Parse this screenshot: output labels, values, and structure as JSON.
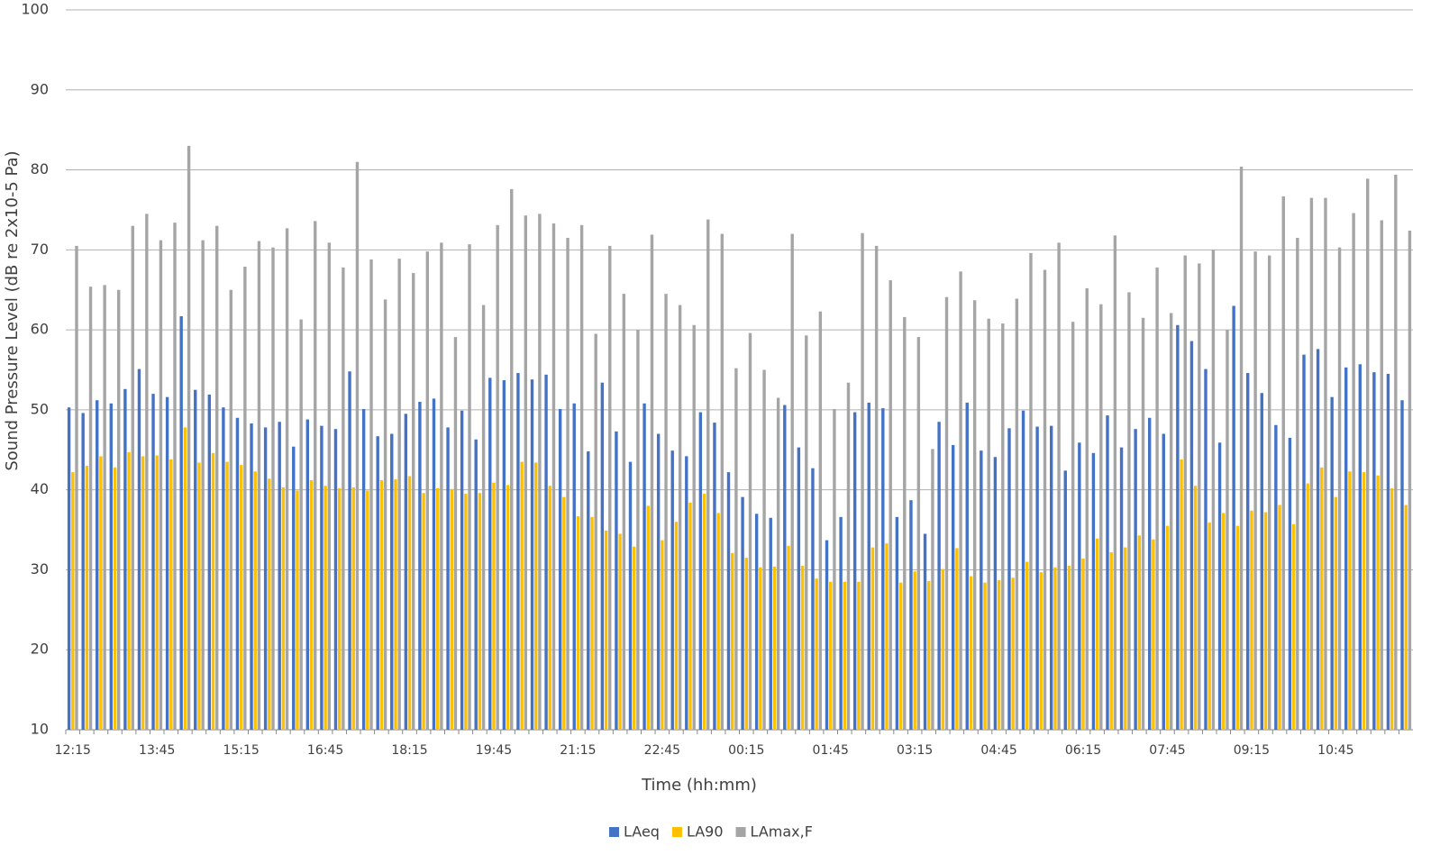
{
  "chart_data": {
    "type": "bar",
    "y_label": "Sound Pressure Level (dB re 2x10-5 Pa)",
    "x_label": "Time (hh:mm)",
    "categories": [
      "12:15",
      null,
      null,
      null,
      null,
      null,
      "13:45",
      null,
      null,
      null,
      null,
      null,
      "15:15",
      null,
      null,
      null,
      null,
      null,
      "16:45",
      null,
      null,
      null,
      null,
      null,
      "18:15",
      null,
      null,
      null,
      null,
      null,
      "19:45",
      null,
      null,
      null,
      null,
      null,
      "21:15",
      null,
      null,
      null,
      null,
      null,
      "22:45",
      null,
      null,
      null,
      null,
      null,
      "00:15",
      null,
      null,
      null,
      null,
      null,
      "01:45",
      null,
      null,
      null,
      null,
      null,
      "03:15",
      null,
      null,
      null,
      null,
      null,
      "04:45",
      null,
      null,
      null,
      null,
      null,
      "06:15",
      null,
      null,
      null,
      null,
      null,
      "07:45",
      null,
      null,
      null,
      null,
      null,
      "09:15",
      null,
      null,
      null,
      null,
      null,
      "10:45",
      null,
      null,
      null,
      null,
      null
    ],
    "series": [
      {
        "name": "LAeq",
        "color": "#4472c4",
        "values": [
          50.3,
          49.6,
          51.2,
          50.8,
          52.6,
          55.1,
          52.0,
          51.6,
          61.7,
          52.5,
          51.9,
          50.3,
          49.0,
          48.3,
          47.8,
          48.5,
          45.4,
          48.8,
          48.0,
          47.6,
          54.8,
          50.1,
          46.7,
          47.0,
          49.5,
          51.0,
          51.4,
          47.8,
          49.9,
          46.3,
          54.0,
          53.7,
          54.6,
          53.8,
          54.4,
          50.1,
          50.8,
          44.8,
          53.4,
          47.3,
          43.5,
          50.8,
          47.0,
          44.9,
          44.2,
          49.7,
          48.4,
          42.2,
          39.1,
          37.0,
          36.5,
          50.6,
          45.3,
          42.7,
          33.7,
          36.6,
          49.7,
          50.9,
          50.2,
          36.6,
          38.7,
          34.5,
          48.5,
          45.6,
          50.9,
          44.9,
          44.1,
          47.7,
          49.9,
          47.9,
          48.0,
          42.4,
          45.9,
          44.6,
          49.3,
          45.3,
          47.6,
          49.0,
          47.0,
          60.6,
          58.6,
          55.1,
          45.9,
          63.0,
          54.6,
          52.1,
          48.1,
          46.5,
          56.9,
          57.6,
          51.6,
          55.3,
          55.7,
          54.7,
          54.5,
          51.2
        ]
      },
      {
        "name": "LA90",
        "color": "#ffc000",
        "values": [
          42.2,
          43.0,
          44.2,
          42.8,
          44.7,
          44.2,
          44.3,
          43.8,
          47.8,
          43.4,
          44.6,
          43.5,
          43.1,
          42.3,
          41.4,
          40.3,
          39.9,
          41.2,
          40.5,
          40.2,
          40.3,
          39.9,
          41.2,
          41.3,
          41.7,
          39.6,
          40.2,
          40.1,
          39.5,
          39.6,
          40.9,
          40.6,
          43.5,
          43.4,
          40.5,
          39.1,
          36.7,
          36.6,
          34.9,
          34.5,
          32.9,
          38.0,
          33.7,
          36.0,
          38.4,
          39.5,
          37.1,
          32.1,
          31.5,
          30.3,
          30.4,
          33.0,
          30.5,
          28.9,
          28.5,
          28.5,
          28.5,
          32.8,
          33.3,
          28.4,
          29.8,
          28.6,
          30.1,
          32.7,
          29.2,
          28.4,
          28.7,
          29.0,
          31.0,
          29.7,
          30.3,
          30.5,
          31.4,
          33.9,
          32.2,
          32.8,
          34.3,
          33.8,
          35.5,
          43.8,
          40.5,
          35.9,
          37.1,
          35.5,
          37.4,
          37.2,
          38.1,
          35.7,
          40.8,
          42.8,
          39.1,
          42.3,
          42.2,
          41.8,
          40.2,
          38.1
        ]
      },
      {
        "name": "LAmax,F",
        "color": "#a5a5a5",
        "values": [
          70.5,
          65.4,
          65.6,
          65.0,
          73.0,
          74.5,
          71.2,
          73.4,
          83.0,
          71.2,
          73.0,
          65.0,
          67.9,
          71.1,
          70.3,
          72.7,
          61.3,
          73.6,
          70.9,
          67.8,
          81.0,
          68.8,
          63.8,
          68.9,
          67.1,
          69.8,
          70.9,
          59.1,
          70.7,
          63.1,
          73.1,
          77.6,
          74.3,
          74.5,
          73.3,
          71.5,
          73.1,
          59.5,
          70.5,
          64.5,
          60.0,
          71.9,
          64.5,
          63.1,
          60.6,
          73.8,
          72.0,
          55.2,
          59.6,
          55.0,
          51.5,
          72.0,
          59.3,
          62.3,
          50.1,
          53.4,
          72.1,
          70.5,
          66.2,
          61.6,
          59.1,
          45.1,
          64.1,
          67.3,
          63.7,
          61.4,
          60.8,
          63.9,
          69.6,
          67.5,
          70.9,
          61.0,
          65.2,
          63.2,
          71.8,
          64.7,
          61.5,
          67.8,
          62.1,
          69.3,
          68.3,
          70.0,
          60.0,
          80.4,
          69.8,
          69.3,
          76.7,
          71.5,
          76.5,
          76.5,
          70.3,
          74.6,
          78.9,
          73.7,
          79.4,
          72.4
        ]
      }
    ],
    "ylim": [
      10,
      100
    ],
    "yticks": [
      10,
      20,
      30,
      40,
      50,
      60,
      70,
      80,
      90,
      100
    ],
    "grid": true,
    "legend": "bottom"
  }
}
